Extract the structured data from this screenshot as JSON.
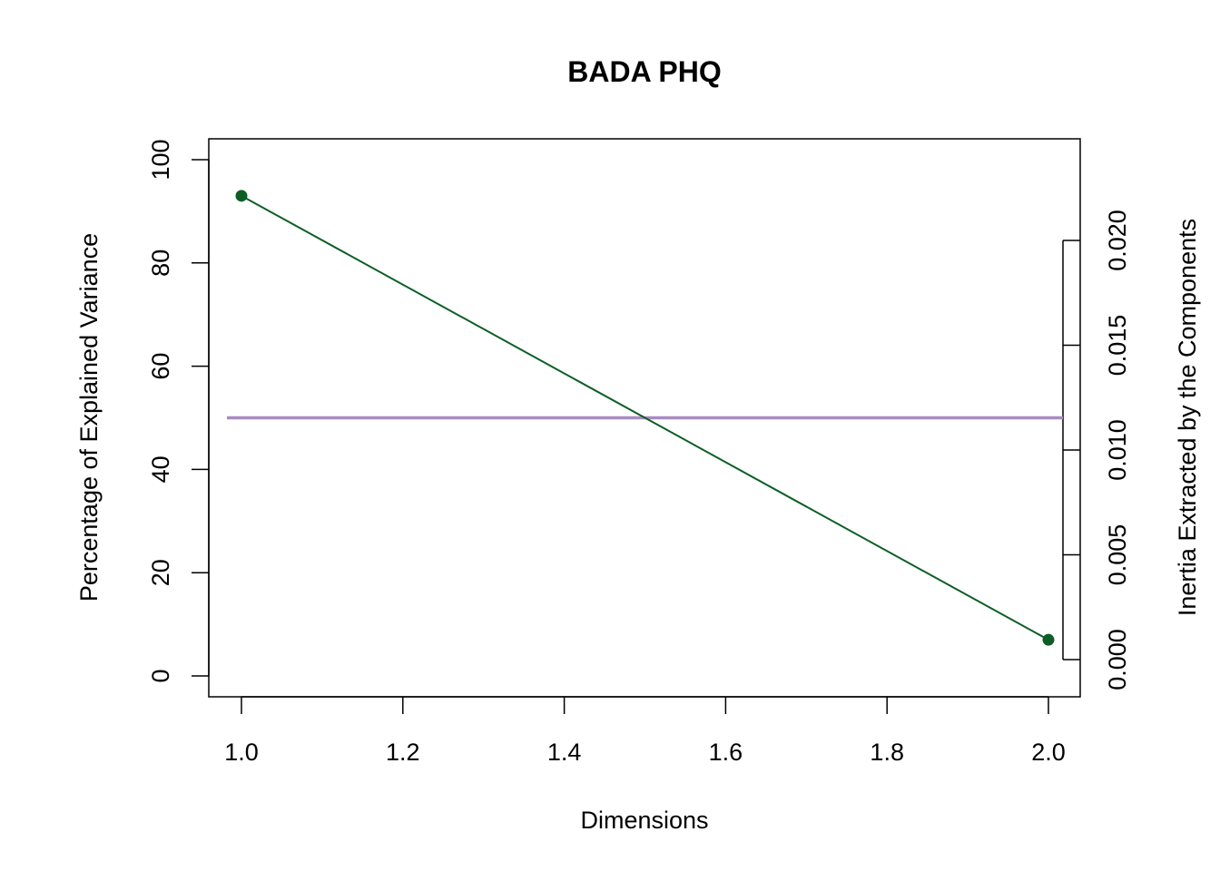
{
  "chart_data": {
    "type": "line",
    "title": "BADA PHQ",
    "xlabel": "Dimensions",
    "ylabel": "Percentage of Explained Variance",
    "ylabel_right": "Inertia Extracted by the Components",
    "xlim": [
      1.0,
      2.0
    ],
    "ylim": [
      0,
      100
    ],
    "ylim_right": [
      0,
      0.02
    ],
    "x_ticks": [
      "1.0",
      "1.2",
      "1.4",
      "1.6",
      "1.8",
      "2.0"
    ],
    "y_ticks": [
      "0",
      "20",
      "40",
      "60",
      "80",
      "100"
    ],
    "y_ticks_right": [
      "0.000",
      "0.005",
      "0.010",
      "0.015",
      "0.020"
    ],
    "series": [
      {
        "x": [
          1,
          2
        ],
        "y": [
          93,
          7
        ],
        "color": "#0d5e26"
      }
    ],
    "reference_line": {
      "y": 50,
      "color": "#a88bc4"
    },
    "grid": false
  }
}
